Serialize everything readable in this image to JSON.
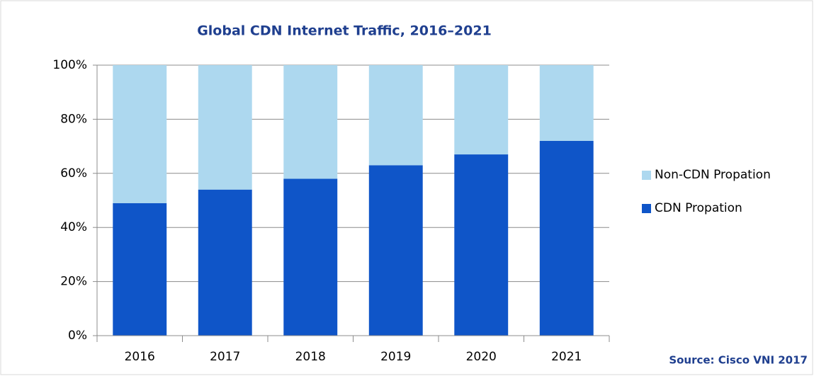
{
  "chart_data": {
    "type": "stacked_bar",
    "title": "Global CDN Internet Traffic, 2016–2021",
    "categories": [
      "2016",
      "2017",
      "2018",
      "2019",
      "2020",
      "2021"
    ],
    "series": [
      {
        "name": "CDN Propation",
        "color": "#0f55c8",
        "values": [
          49,
          54,
          58,
          63,
          67,
          72
        ]
      },
      {
        "name": "Non-CDN Propation",
        "color": "#add8ef",
        "values": [
          51,
          46,
          42,
          37,
          33,
          28
        ]
      }
    ],
    "ylim": [
      0,
      100
    ],
    "yticks": [
      {
        "value": 0,
        "label": "0%"
      },
      {
        "value": 20,
        "label": "20%"
      },
      {
        "value": 40,
        "label": "40%"
      },
      {
        "value": 60,
        "label": "60%"
      },
      {
        "value": 80,
        "label": "80%"
      },
      {
        "value": 100,
        "label": "100%"
      }
    ],
    "grid": true,
    "legend": "right",
    "annotation": "Source: Cisco VNI 2017"
  }
}
